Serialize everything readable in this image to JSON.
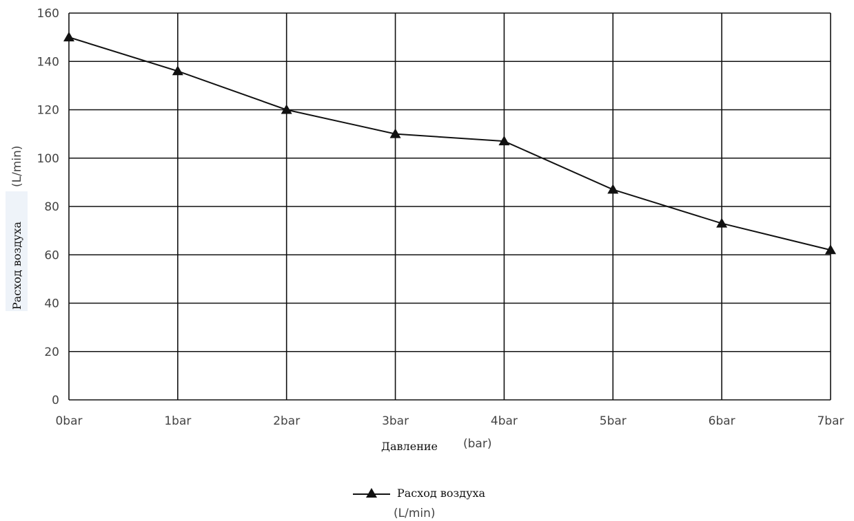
{
  "chart_data": {
    "type": "line",
    "categories": [
      "0bar",
      "1bar",
      "2bar",
      "3bar",
      "4bar",
      "5bar",
      "6bar",
      "7bar"
    ],
    "series": [
      {
        "name": "Расход воздуха",
        "values": [
          150,
          136,
          120,
          110,
          107,
          87,
          73,
          62
        ]
      }
    ],
    "ylim": [
      0,
      160
    ],
    "yticks": [
      0,
      20,
      40,
      60,
      80,
      100,
      120,
      140,
      160
    ],
    "xlabel": "Давление",
    "xlabel_unit": "(bar)",
    "ylabel": "Расход воздуха",
    "ylabel_unit": "(L/min)",
    "legend": {
      "position": "bottom-center",
      "label": "Расход воздуха",
      "unit": "(L/min)",
      "marker": "triangle-icon"
    },
    "grid": true,
    "colors": {
      "line": "#111111",
      "grid": "#111111",
      "tick_text": "#444444",
      "ylabel_background": "#eef3f9"
    }
  }
}
